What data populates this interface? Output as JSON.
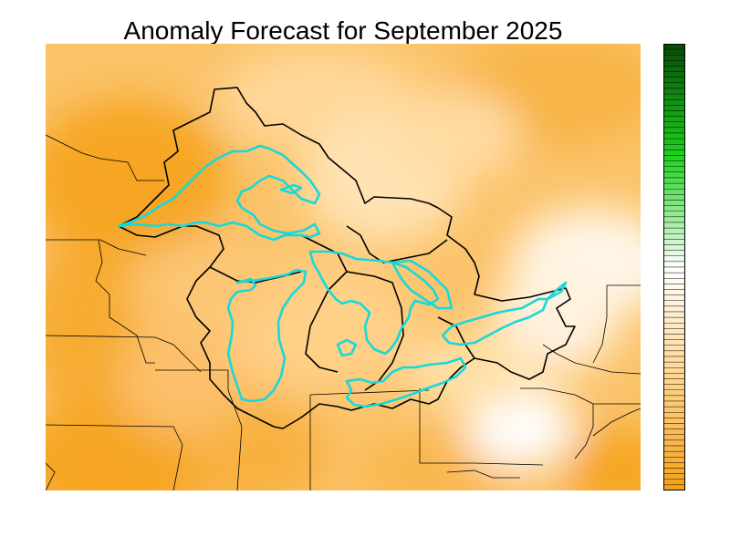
{
  "title": "Anomaly Forecast for September 2025",
  "colors": {
    "anomaly_strong_dry": "#f5a11a",
    "anomaly_dry": "#ffd590",
    "anomaly_neutral": "#ffffff",
    "anomaly_wet": "#1fd31f",
    "anomaly_strong_wet": "#064d06",
    "lake_outline": "#17d9d9",
    "basin_outline": "#000000",
    "state_lines": "#000000"
  },
  "colorbar": {
    "levels": 80,
    "top_color_name": "dark green",
    "bottom_color_name": "orange"
  }
}
